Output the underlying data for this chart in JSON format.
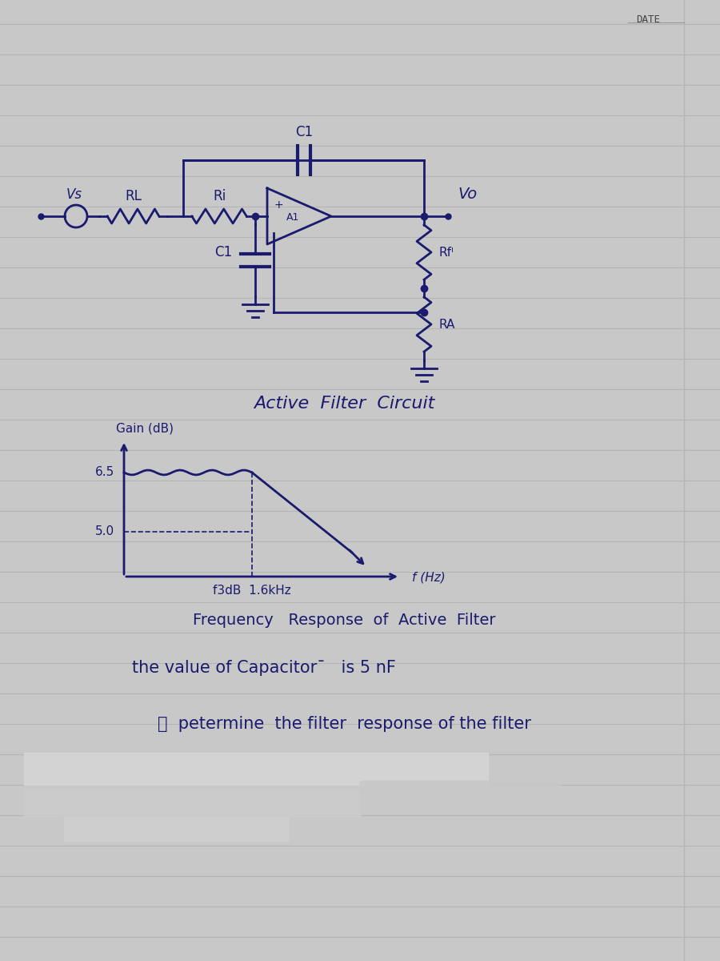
{
  "bg_color": "#c8c8c8",
  "paper_color": "#d9d9d9",
  "line_color": "#b0b0b0",
  "ink_color": "#1a1a6e",
  "date_text": "DATE",
  "circuit_title": "Active  Filter  Circuit",
  "freq_response_title": "Frequency   Response  of  Active  Filter",
  "gain_label": "Gain (dB)",
  "gain_value": "6.5",
  "gain_lower": "5.0",
  "freq_label": "f (Hz)",
  "f3db_label": "f3dB  1.6kHz",
  "capacitor_text": "the value of Capacitor¯   is 5 nF",
  "determine_text": "ⓞ  petermine  the filter  response of the filter",
  "vs_label": "Vs",
  "rl_label": "RL",
  "ri_label": "Ri",
  "c1_label_top": "C1",
  "c1_label_bot": "C1",
  "vo_label": "Vo",
  "rf_label": "Rfᴵ",
  "ra_label": "RA",
  "a1_label": "A1"
}
